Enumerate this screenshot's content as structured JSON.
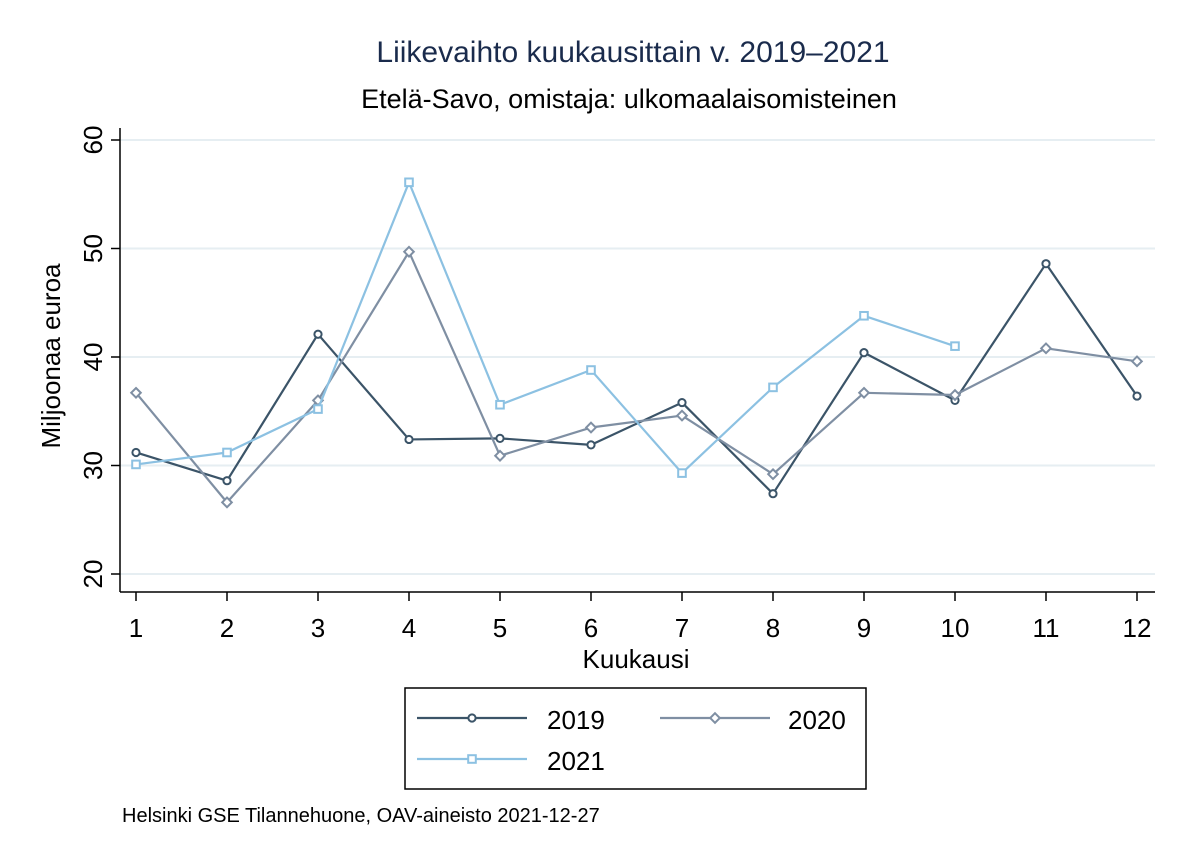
{
  "chart_data": {
    "type": "line",
    "title": "Liikevaihto kuukausittain v. 2019–2021",
    "subtitle": "Etelä-Savo, omistaja: ulkomaalaisomisteinen",
    "xlabel": "Kuukausi",
    "ylabel": "Miljoonaa euroa",
    "x": [
      1,
      2,
      3,
      4,
      5,
      6,
      7,
      8,
      9,
      10,
      11,
      12
    ],
    "xlim": [
      1,
      12
    ],
    "ylim": [
      20,
      60
    ],
    "yticks": [
      20,
      30,
      40,
      50,
      60
    ],
    "grid": true,
    "legend_position": "bottom",
    "series": [
      {
        "name": "2019",
        "color": "#3b5468",
        "marker": "circle",
        "values": [
          31.2,
          28.6,
          42.1,
          32.4,
          32.5,
          31.9,
          35.8,
          27.4,
          40.4,
          36.0,
          48.6,
          36.4
        ]
      },
      {
        "name": "2020",
        "color": "#7f8fa3",
        "marker": "diamond",
        "values": [
          36.7,
          26.6,
          36.0,
          49.7,
          30.9,
          33.5,
          34.6,
          29.2,
          36.7,
          36.5,
          40.8,
          39.6
        ]
      },
      {
        "name": "2021",
        "color": "#8cc1e2",
        "marker": "square",
        "values": [
          30.1,
          31.2,
          35.2,
          56.1,
          35.6,
          38.8,
          29.3,
          37.2,
          43.8,
          41.0,
          null,
          null
        ]
      }
    ]
  },
  "source_note": "Helsinki GSE Tilannehuone, OAV-aineisto 2021-12-27"
}
